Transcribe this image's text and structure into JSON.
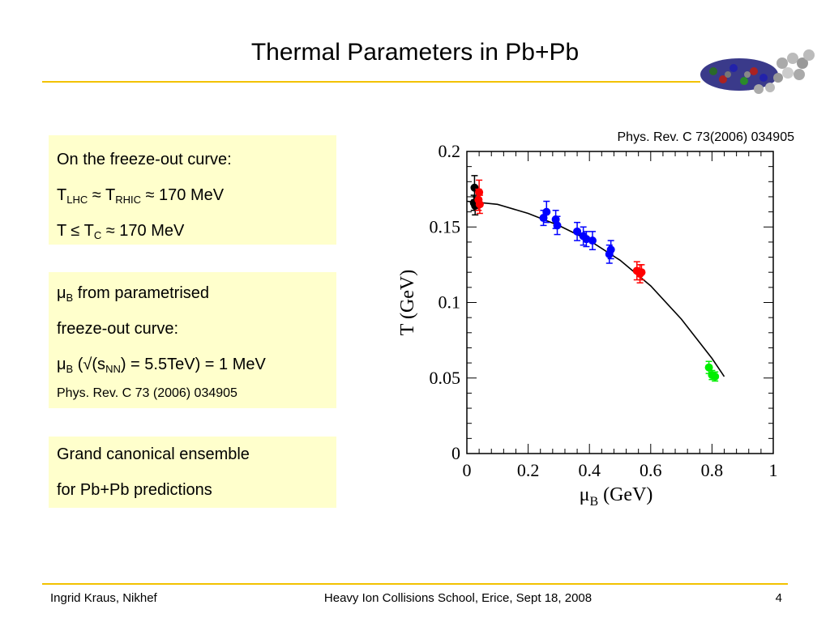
{
  "slide": {
    "title": "Thermal Parameters in Pb+Pb",
    "box1": {
      "line1": "On the freeze-out curve:",
      "line2": {
        "t1": "T",
        "s1": "LHC",
        "mid": " ≈ T",
        "s2": "RHIC",
        "end": " ≈ 170 MeV"
      },
      "line3": {
        "t1": "T ≤ T",
        "s1": "C",
        "end": " ≈ 170 MeV"
      }
    },
    "box2": {
      "line1": {
        "mu": "μ",
        "sub": "B",
        "end": " from parametrised"
      },
      "line2": "freeze-out curve:",
      "line3": {
        "mu": "μ",
        "sub": "B",
        "mid": " (√(s",
        "sub2": "NN",
        "end": ") = 5.5TeV) = 1 MeV"
      },
      "ref": "Phys. Rev. C 73 (2006) 034905"
    },
    "box3": {
      "line1": "Grand canonical ensemble",
      "line2": "for Pb+Pb predictions"
    },
    "footer": {
      "left": "Ingrid Kraus, Nikhef",
      "center": "Heavy Ion Collisions School, Erice, Sept 18, 2008",
      "page": "4"
    }
  },
  "chart_data": {
    "type": "scatter",
    "reference": "Phys. Rev. C 73(2006) 034905",
    "xlabel": {
      "main": "μ",
      "sub": "B",
      "unit": " (GeV)"
    },
    "ylabel": "T (GeV)",
    "xlim": [
      0,
      1
    ],
    "ylim": [
      0,
      0.2
    ],
    "xticks": [
      "0",
      "0.2",
      "0.4",
      "0.6",
      "0.8",
      "1"
    ],
    "yticks": [
      "0",
      "0.05",
      "0.1",
      "0.15",
      "0.2"
    ],
    "series": [
      {
        "color": "#000000",
        "x": [
          0.025,
          0.023,
          0.027
        ],
        "y": [
          0.176,
          0.166,
          0.164
        ],
        "err": [
          0.008,
          0.005,
          0.006
        ]
      },
      {
        "color": "#ff0000",
        "x": [
          0.04,
          0.038,
          0.042,
          0.555,
          0.565,
          0.57
        ],
        "y": [
          0.173,
          0.168,
          0.165,
          0.121,
          0.119,
          0.12
        ],
        "err": [
          0.008,
          0.007,
          0.006,
          0.006,
          0.006,
          0.005
        ]
      },
      {
        "color": "#0000ff",
        "x": [
          0.25,
          0.26,
          0.29,
          0.295,
          0.36,
          0.38,
          0.39,
          0.41,
          0.465,
          0.47
        ],
        "y": [
          0.156,
          0.16,
          0.155,
          0.151,
          0.147,
          0.144,
          0.142,
          0.141,
          0.132,
          0.135
        ],
        "err": [
          0.005,
          0.007,
          0.006,
          0.006,
          0.006,
          0.006,
          0.005,
          0.006,
          0.006,
          0.006
        ]
      },
      {
        "color": "#00ee00",
        "x": [
          0.79,
          0.8,
          0.81
        ],
        "y": [
          0.057,
          0.052,
          0.051
        ],
        "err": [
          0.004,
          0.003,
          0.003
        ]
      }
    ],
    "curve": {
      "color": "#000000",
      "x": [
        0.0,
        0.1,
        0.2,
        0.3,
        0.4,
        0.5,
        0.6,
        0.7,
        0.8,
        0.84
      ],
      "y": [
        0.167,
        0.165,
        0.159,
        0.151,
        0.141,
        0.128,
        0.111,
        0.089,
        0.063,
        0.051
      ]
    }
  }
}
